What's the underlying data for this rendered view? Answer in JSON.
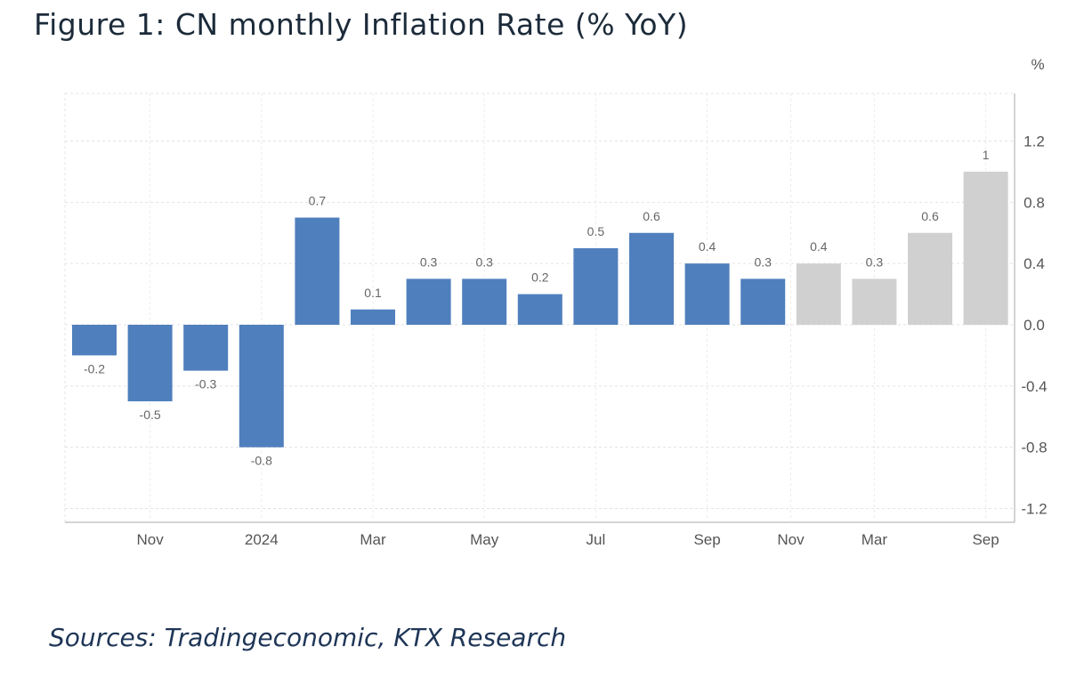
{
  "title": "Figure 1: CN monthly Inflation Rate (% YoY)",
  "source": "Sources: Tradingeconomic, KTX Research",
  "chart_data": {
    "type": "bar",
    "title": "Figure 1: CN monthly Inflation Rate (% YoY)",
    "ylabel": "%",
    "xlabel": "",
    "ylim": [
      -1.3,
      1.5
    ],
    "yticks": [
      "1.2",
      "0.8",
      "0.4",
      "0.0",
      "-0.4",
      "-0.8",
      "-1.2"
    ],
    "ytick_values": [
      1.2,
      0.8,
      0.4,
      0.0,
      -0.4,
      -0.8,
      -1.2
    ],
    "axis_position": "right",
    "grid": true,
    "xtick_labels": [
      {
        "label": "Nov",
        "bar_index": 1
      },
      {
        "label": "2024",
        "bar_index": 3
      },
      {
        "label": "Mar",
        "bar_index": 5
      },
      {
        "label": "May",
        "bar_index": 7
      },
      {
        "label": "Jul",
        "bar_index": 9
      },
      {
        "label": "Sep",
        "bar_index": 11
      },
      {
        "label": "Nov",
        "bar_index": 12.5
      },
      {
        "label": "Mar",
        "bar_index": 14
      },
      {
        "label": "Sep",
        "bar_index": 16
      }
    ],
    "values": [
      -0.2,
      -0.5,
      -0.3,
      -0.8,
      0.7,
      0.1,
      0.3,
      0.3,
      0.2,
      0.5,
      0.6,
      0.4,
      0.3,
      0.4,
      0.3,
      0.6,
      1
    ],
    "data_labels": [
      "-0.2",
      "-0.5",
      "-0.3",
      "-0.8",
      "0.7",
      "0.1",
      "0.3",
      "0.3",
      "0.2",
      "0.5",
      "0.6",
      "0.4",
      "0.3",
      "0.4",
      "0.3",
      "0.6",
      "1"
    ],
    "bar_groups": [
      "actual",
      "actual",
      "actual",
      "actual",
      "actual",
      "actual",
      "actual",
      "actual",
      "actual",
      "actual",
      "actual",
      "actual",
      "actual",
      "forecast",
      "forecast",
      "forecast",
      "forecast"
    ],
    "colors": {
      "actual": "#4f7fbd",
      "forecast": "#d0d0d0"
    }
  }
}
